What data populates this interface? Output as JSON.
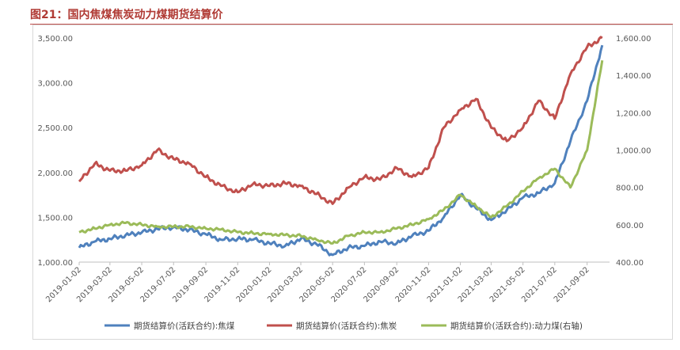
{
  "header": {
    "title": "图21：国内焦煤焦炭动力煤期货结算价"
  },
  "chart_data": {
    "type": "line",
    "title": "图21：国内焦煤焦炭动力煤期货结算价",
    "x_ticks": [
      "2019-01-02",
      "2019-03-02",
      "2019-05-02",
      "2019-07-02",
      "2019-09-02",
      "2019-11-02",
      "2020-01-02",
      "2020-03-02",
      "2020-05-02",
      "2020-07-02",
      "2020-09-02",
      "2020-11-02",
      "2021-01-02",
      "2021-03-02",
      "2021-05-02",
      "2021-07-02",
      "2021-09-02"
    ],
    "y_left": {
      "min": 1000,
      "max": 3500,
      "ticks": [
        "1,000.00",
        "1,500.00",
        "2,000.00",
        "2,500.00",
        "3,000.00",
        "3,500.00"
      ]
    },
    "y_right": {
      "min": 400,
      "max": 1600,
      "ticks": [
        "400.00",
        "600.00",
        "800.00",
        "1,000.00",
        "1,200.00",
        "1,400.00",
        "1,600.00"
      ]
    },
    "legend_position": "bottom",
    "grid": false,
    "series": [
      {
        "name": "期货结算价(活跃合约):焦煤",
        "axis": "left",
        "color": "#4f81bd",
        "points": [
          [
            "2019-01-02",
            1160
          ],
          [
            "2019-02-01",
            1230
          ],
          [
            "2019-03-02",
            1260
          ],
          [
            "2019-04-01",
            1300
          ],
          [
            "2019-05-02",
            1330
          ],
          [
            "2019-06-01",
            1370
          ],
          [
            "2019-07-02",
            1390
          ],
          [
            "2019-08-01",
            1360
          ],
          [
            "2019-09-02",
            1310
          ],
          [
            "2019-10-01",
            1250
          ],
          [
            "2019-11-02",
            1260
          ],
          [
            "2019-12-01",
            1250
          ],
          [
            "2020-01-02",
            1210
          ],
          [
            "2020-02-01",
            1180
          ],
          [
            "2020-03-02",
            1260
          ],
          [
            "2020-04-01",
            1200
          ],
          [
            "2020-05-02",
            1080
          ],
          [
            "2020-06-01",
            1160
          ],
          [
            "2020-07-02",
            1180
          ],
          [
            "2020-08-01",
            1230
          ],
          [
            "2020-09-02",
            1210
          ],
          [
            "2020-10-01",
            1290
          ],
          [
            "2020-11-02",
            1350
          ],
          [
            "2020-12-01",
            1500
          ],
          [
            "2021-01-02",
            1750
          ],
          [
            "2021-02-01",
            1600
          ],
          [
            "2021-03-02",
            1470
          ],
          [
            "2021-04-01",
            1580
          ],
          [
            "2021-05-02",
            1720
          ],
          [
            "2021-06-01",
            1770
          ],
          [
            "2021-07-02",
            1880
          ],
          [
            "2021-08-01",
            2350
          ],
          [
            "2021-09-02",
            2800
          ],
          [
            "2021-10-01",
            3420
          ]
        ]
      },
      {
        "name": "期货结算价(活跃合约):焦炭",
        "axis": "left",
        "color": "#c0504d",
        "points": [
          [
            "2019-01-02",
            1900
          ],
          [
            "2019-02-01",
            2100
          ],
          [
            "2019-03-02",
            2020
          ],
          [
            "2019-04-01",
            2020
          ],
          [
            "2019-05-02",
            2080
          ],
          [
            "2019-06-01",
            2250
          ],
          [
            "2019-07-02",
            2150
          ],
          [
            "2019-08-01",
            2100
          ],
          [
            "2019-09-02",
            1950
          ],
          [
            "2019-10-01",
            1850
          ],
          [
            "2019-11-02",
            1780
          ],
          [
            "2019-12-01",
            1870
          ],
          [
            "2020-01-02",
            1850
          ],
          [
            "2020-02-01",
            1880
          ],
          [
            "2020-03-02",
            1850
          ],
          [
            "2020-04-01",
            1760
          ],
          [
            "2020-05-02",
            1650
          ],
          [
            "2020-06-01",
            1830
          ],
          [
            "2020-07-02",
            1950
          ],
          [
            "2020-08-01",
            1920
          ],
          [
            "2020-09-02",
            2050
          ],
          [
            "2020-10-01",
            1950
          ],
          [
            "2020-11-02",
            2050
          ],
          [
            "2020-12-01",
            2500
          ],
          [
            "2021-01-02",
            2700
          ],
          [
            "2021-02-01",
            2820
          ],
          [
            "2021-03-02",
            2500
          ],
          [
            "2021-04-01",
            2350
          ],
          [
            "2021-05-02",
            2500
          ],
          [
            "2021-06-01",
            2800
          ],
          [
            "2021-07-02",
            2600
          ],
          [
            "2021-08-01",
            3100
          ],
          [
            "2021-09-02",
            3400
          ],
          [
            "2021-10-01",
            3500
          ]
        ]
      },
      {
        "name": "期货结算价(活跃合约):动力煤(右轴)",
        "axis": "right",
        "color": "#9bbb59",
        "points": [
          [
            "2019-01-02",
            560
          ],
          [
            "2019-02-01",
            580
          ],
          [
            "2019-03-02",
            600
          ],
          [
            "2019-04-01",
            610
          ],
          [
            "2019-05-02",
            600
          ],
          [
            "2019-06-01",
            590
          ],
          [
            "2019-07-02",
            590
          ],
          [
            "2019-08-01",
            590
          ],
          [
            "2019-09-02",
            580
          ],
          [
            "2019-10-01",
            575
          ],
          [
            "2019-11-02",
            560
          ],
          [
            "2019-12-01",
            555
          ],
          [
            "2020-01-02",
            550
          ],
          [
            "2020-02-01",
            545
          ],
          [
            "2020-03-02",
            540
          ],
          [
            "2020-04-01",
            520
          ],
          [
            "2020-05-02",
            500
          ],
          [
            "2020-06-01",
            540
          ],
          [
            "2020-07-02",
            560
          ],
          [
            "2020-08-01",
            560
          ],
          [
            "2020-09-02",
            580
          ],
          [
            "2020-10-01",
            600
          ],
          [
            "2020-11-02",
            630
          ],
          [
            "2020-12-01",
            680
          ],
          [
            "2021-01-02",
            760
          ],
          [
            "2021-02-01",
            700
          ],
          [
            "2021-03-02",
            640
          ],
          [
            "2021-04-01",
            700
          ],
          [
            "2021-05-02",
            780
          ],
          [
            "2021-06-01",
            850
          ],
          [
            "2021-07-02",
            900
          ],
          [
            "2021-08-01",
            800
          ],
          [
            "2021-09-02",
            1000
          ],
          [
            "2021-10-01",
            1480
          ]
        ]
      }
    ]
  }
}
